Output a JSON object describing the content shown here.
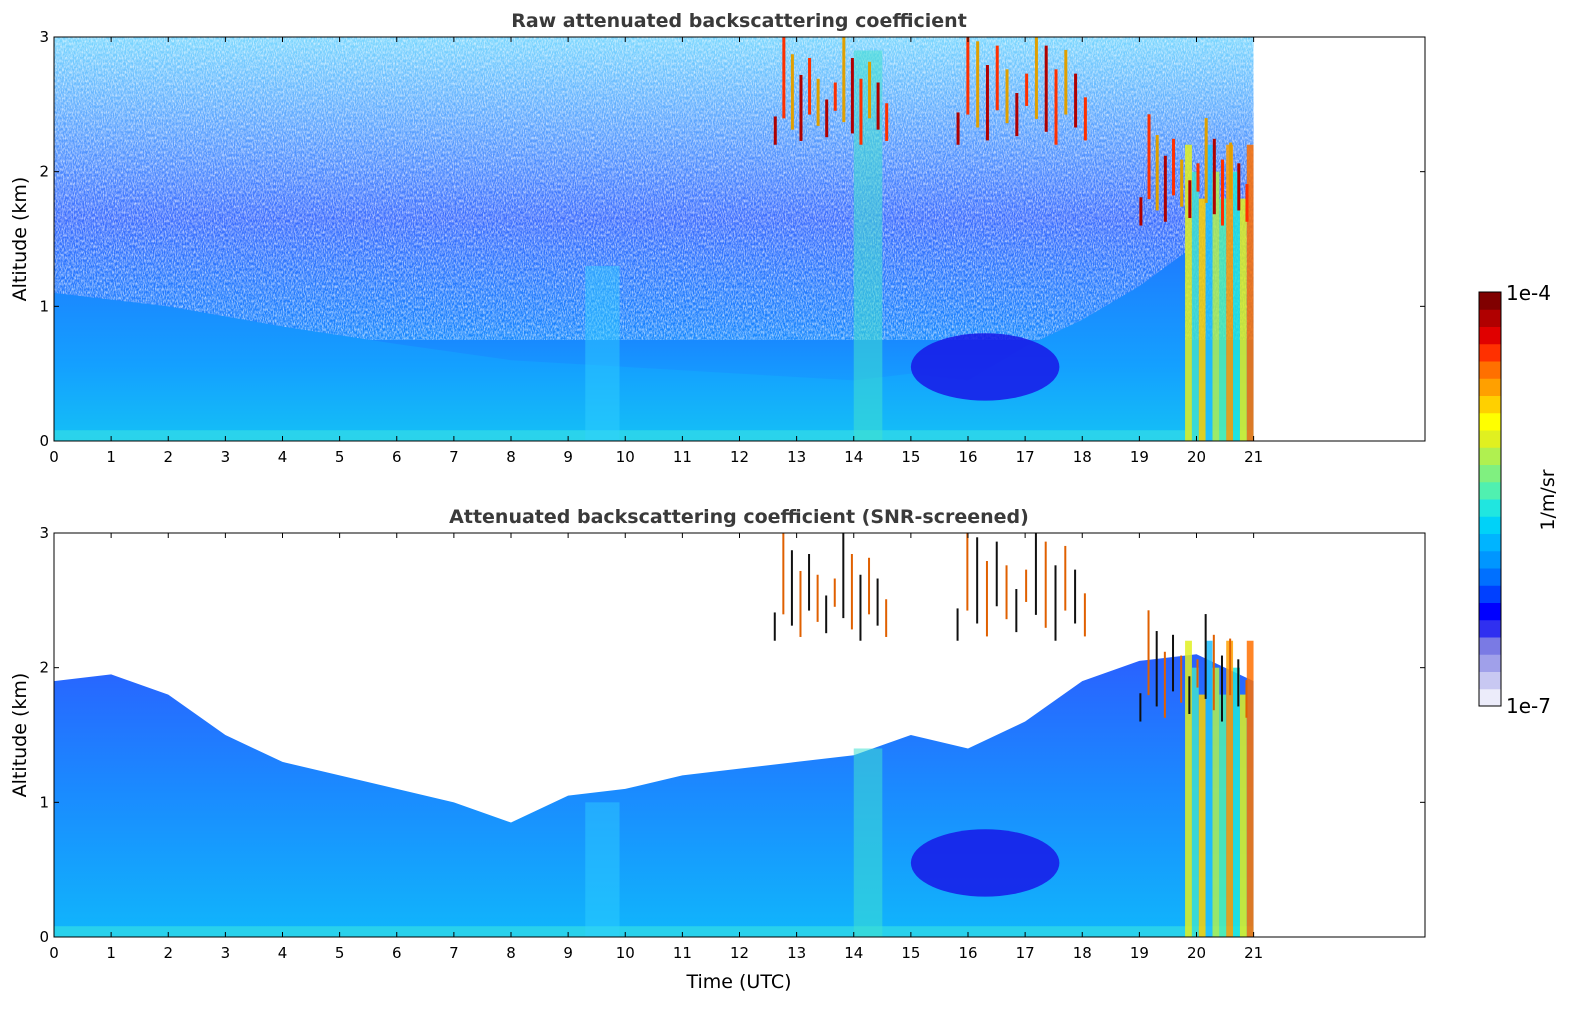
{
  "chart_data": [
    {
      "type": "heatmap",
      "title": "Raw attenuated backscattering coefficient",
      "xlabel": "",
      "ylabel": "Altitude (km)",
      "xlim": [
        0,
        24
      ],
      "ylim": [
        0,
        3
      ],
      "x_ticks": [
        "0",
        "1",
        "2",
        "3",
        "4",
        "5",
        "6",
        "7",
        "8",
        "9",
        "10",
        "11",
        "12",
        "13",
        "14",
        "15",
        "16",
        "17",
        "18",
        "19",
        "20",
        "21"
      ],
      "y_ticks": [
        "0",
        "1",
        "2",
        "3"
      ],
      "data_end_time": 21,
      "features": {
        "boundary_layer_top_km": [
          {
            "x": 0,
            "y": 1.1
          },
          {
            "x": 2,
            "y": 1.0
          },
          {
            "x": 4,
            "y": 0.85
          },
          {
            "x": 6,
            "y": 0.72
          },
          {
            "x": 8,
            "y": 0.6
          },
          {
            "x": 10,
            "y": 0.55
          },
          {
            "x": 12,
            "y": 0.5
          },
          {
            "x": 14,
            "y": 0.45
          },
          {
            "x": 15,
            "y": 0.5
          },
          {
            "x": 16,
            "y": 0.45
          },
          {
            "x": 17,
            "y": 0.7
          },
          {
            "x": 18,
            "y": 0.9
          },
          {
            "x": 19,
            "y": 1.15
          },
          {
            "x": 19.8,
            "y": 1.4
          }
        ],
        "cloud_layers_km": [
          {
            "t_start": 12.6,
            "t_end": 14.7,
            "base": 2.2,
            "top": 2.9
          },
          {
            "t_start": 15.8,
            "t_end": 18.2,
            "base": 2.2,
            "top": 3.0
          },
          {
            "t_start": 19.0,
            "t_end": 21.0,
            "base": 1.6,
            "top": 2.3
          }
        ]
      }
    },
    {
      "type": "heatmap",
      "title": "Attenuated backscattering coefficient (SNR-screened)",
      "xlabel": "Time (UTC)",
      "ylabel": "Altitude (km)",
      "xlim": [
        0,
        24
      ],
      "ylim": [
        0,
        3
      ],
      "x_ticks": [
        "0",
        "1",
        "2",
        "3",
        "4",
        "5",
        "6",
        "7",
        "8",
        "9",
        "10",
        "11",
        "12",
        "13",
        "14",
        "15",
        "16",
        "17",
        "18",
        "19",
        "20",
        "21"
      ],
      "y_ticks": [
        "0",
        "1",
        "2",
        "3"
      ],
      "data_end_time": 21,
      "features": {
        "signal_top_km": [
          {
            "x": 0,
            "y": 1.9
          },
          {
            "x": 1,
            "y": 1.95
          },
          {
            "x": 2,
            "y": 1.8
          },
          {
            "x": 3,
            "y": 1.5
          },
          {
            "x": 4,
            "y": 1.3
          },
          {
            "x": 5,
            "y": 1.2
          },
          {
            "x": 6,
            "y": 1.1
          },
          {
            "x": 7,
            "y": 1.0
          },
          {
            "x": 8,
            "y": 0.85
          },
          {
            "x": 9,
            "y": 1.05
          },
          {
            "x": 10,
            "y": 1.1
          },
          {
            "x": 11,
            "y": 1.2
          },
          {
            "x": 12,
            "y": 1.25
          },
          {
            "x": 13,
            "y": 1.3
          },
          {
            "x": 14,
            "y": 1.35
          },
          {
            "x": 15,
            "y": 1.5
          },
          {
            "x": 16,
            "y": 1.4
          },
          {
            "x": 17,
            "y": 1.6
          },
          {
            "x": 18,
            "y": 1.9
          },
          {
            "x": 19,
            "y": 2.05
          },
          {
            "x": 20,
            "y": 2.1
          },
          {
            "x": 21,
            "y": 1.9
          }
        ]
      }
    }
  ],
  "colorbar": {
    "label": "1/m/sr",
    "max_label": "1e-4",
    "min_label": "1e-7",
    "colors": [
      "#ececfa",
      "#c8c8f2",
      "#a0a0ea",
      "#7a7ae4",
      "#3030f0",
      "#0000ff",
      "#0040ff",
      "#0070ff",
      "#0096ff",
      "#00b4ff",
      "#00d2f8",
      "#20e6e0",
      "#50f0b0",
      "#80f080",
      "#b0f050",
      "#e0f020",
      "#ffff00",
      "#ffd000",
      "#ffa000",
      "#ff7000",
      "#ff3000",
      "#e00000",
      "#b00000",
      "#800000"
    ]
  }
}
